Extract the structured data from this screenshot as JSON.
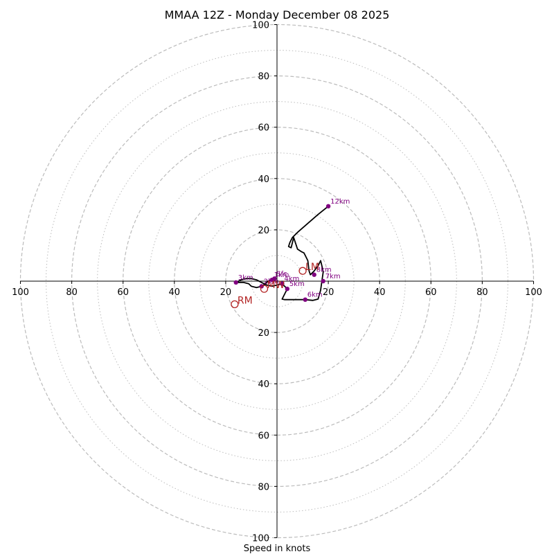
{
  "chart_data": {
    "type": "hodograph",
    "title": "MMAA 12Z - Monday December 08 2025",
    "xlabel": "Speed in knots",
    "units": "knots",
    "rings": {
      "dashed": [
        20,
        40,
        60,
        80,
        100
      ],
      "dotted": [
        10,
        30,
        50,
        70,
        90
      ],
      "max": 100
    },
    "x_ticks": [
      "100",
      "80",
      "60",
      "40",
      "20",
      "20",
      "40",
      "60",
      "80",
      "100"
    ],
    "x_tick_values": [
      -100,
      -80,
      -60,
      -40,
      -20,
      20,
      40,
      60,
      80,
      100
    ],
    "y_ticks": [
      "100",
      "80",
      "60",
      "40",
      "20",
      "20",
      "40",
      "60",
      "80",
      "100"
    ],
    "y_tick_values": [
      100,
      80,
      60,
      40,
      20,
      -20,
      -40,
      -60,
      -80,
      -100
    ],
    "hodograph_line": {
      "color": "#000000",
      "u": [
        -1,
        -2,
        -3.5,
        -4.5,
        -6,
        -8,
        -10,
        -11,
        -13,
        -16,
        -14,
        -12,
        -10,
        -8,
        -6,
        -4,
        -2,
        0,
        2,
        4,
        2,
        3,
        5,
        8,
        11,
        14,
        16,
        17,
        17.5,
        18,
        17.5,
        17,
        16,
        14.5,
        13,
        12.5,
        12,
        11,
        10.5,
        9.5,
        8,
        6.5,
        5.5,
        4.5,
        5,
        6,
        8,
        12,
        16,
        20
      ],
      "v": [
        1,
        0.5,
        0,
        -1,
        -2,
        -2.5,
        -2,
        -1,
        -0.5,
        -0.5,
        0.5,
        1,
        1,
        0.5,
        -0.5,
        -1.5,
        -2,
        -1.5,
        -1,
        -3,
        -7,
        -7.2,
        -7.2,
        -7.2,
        -7.2,
        -7.5,
        -7,
        -3.5,
        0,
        3.5,
        6,
        8,
        6,
        4,
        2.5,
        4,
        8,
        10,
        11,
        11.5,
        12.5,
        17,
        13,
        13.5,
        15,
        17,
        19,
        22.5,
        26,
        29.2
      ]
    },
    "height_markers": [
      {
        "label": "Sfc",
        "u": -1,
        "v": 1
      },
      {
        "label": "1km",
        "u": -2,
        "v": 0.5
      },
      {
        "label": "2km",
        "u": -6,
        "v": -2
      },
      {
        "label": "3km",
        "u": -16,
        "v": -0.5
      },
      {
        "label": "4km",
        "u": 2,
        "v": -1
      },
      {
        "label": "5km",
        "u": 4,
        "v": -3
      },
      {
        "label": "6km",
        "u": 11,
        "v": -7.2
      },
      {
        "label": "7km",
        "u": 18,
        "v": 0
      },
      {
        "label": "8km",
        "u": 14.5,
        "v": 2.5
      },
      {
        "label": "12km",
        "u": 20,
        "v": 29.2
      }
    ],
    "storm_motion": [
      {
        "label": "LM",
        "u": 10,
        "v": 4
      },
      {
        "label": "RM",
        "u": -16.5,
        "v": -9
      },
      {
        "label": "MW",
        "u": -5,
        "v": -3
      }
    ],
    "colors": {
      "marker": "#800080",
      "motion": "#b22222",
      "ring": "#bbbbbb",
      "line": "#000000"
    }
  }
}
